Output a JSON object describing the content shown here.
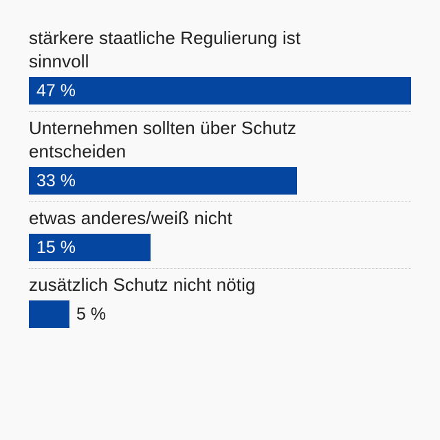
{
  "chart_data": {
    "type": "bar",
    "orientation": "horizontal",
    "categories": [
      "stärkere staatliche Regulierung ist sinnvoll",
      "Unternehmen sollten über Schutz entscheiden",
      "etwas anderes/weiß nicht",
      "zusätzlich Schutz nicht nötig"
    ],
    "values": [
      47,
      33,
      15,
      5
    ],
    "value_labels": [
      "47 %",
      "33 %",
      "15 %",
      "5 %"
    ],
    "xlim": [
      0,
      47
    ],
    "unit": "%",
    "bar_color": "#0546a0",
    "grid": false
  }
}
